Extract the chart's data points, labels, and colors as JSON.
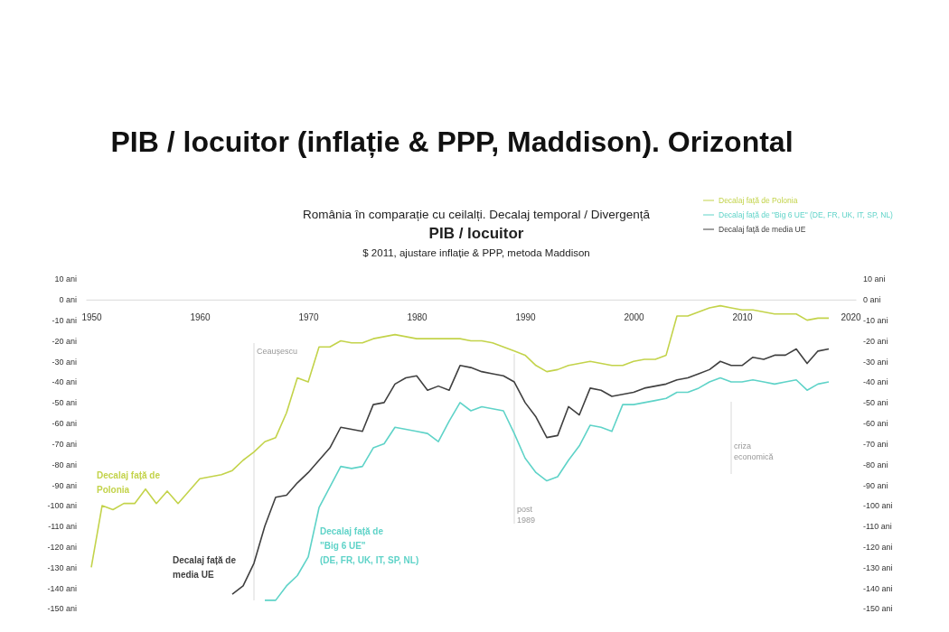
{
  "chart_data": {
    "type": "line",
    "title": "PIB / locuitor (inflație & PPP, Maddison). Orizontal",
    "subtitle": "România în comparație cu ceilalți. Decalaj temporal / Divergență",
    "annotations": [
      "PIB / locuitor",
      "$ 2011, ajustare inflație & PPP, metoda Maddison",
      "Decalaj față de\nPolonia",
      "Decalaj față de\n\"Big 6 UE\"\n(DE, FR, UK, IT, SP, NL)",
      "Decalaj față de\nmedia UE"
    ],
    "x": [
      1950,
      1951,
      1952,
      1953,
      1954,
      1955,
      1956,
      1957,
      1958,
      1959,
      1960,
      1961,
      1962,
      1963,
      1964,
      1965,
      1966,
      1967,
      1968,
      1969,
      1970,
      1971,
      1972,
      1973,
      1974,
      1975,
      1976,
      1977,
      1978,
      1979,
      1980,
      1981,
      1982,
      1983,
      1984,
      1985,
      1986,
      1987,
      1988,
      1989,
      1990,
      1991,
      1992,
      1993,
      1994,
      1995,
      1996,
      1997,
      1998,
      1999,
      2000,
      2001,
      2002,
      2003,
      2004,
      2005,
      2006,
      2007,
      2008,
      2009,
      2010,
      2011,
      2012,
      2013,
      2014,
      2015,
      2016,
      2017,
      2018
    ],
    "series": [
      {
        "name": "Decalaj față de Polonia",
        "color": "#c3d34a",
        "values": [
          -130,
          -100,
          -102,
          -99,
          -99,
          -92,
          -99,
          -93,
          -99,
          -93,
          -87,
          -86,
          -85,
          -83,
          -78,
          -74,
          -69,
          -67,
          -55,
          -38,
          -40,
          -23,
          -23,
          -20,
          -21,
          -21,
          -19,
          -18,
          -17,
          -18,
          -19,
          -19,
          -19,
          -19,
          -19,
          -20,
          -20,
          -21,
          -23,
          -25,
          -27,
          -32,
          -35,
          -34,
          -32,
          -31,
          -30,
          -31,
          -32,
          -32,
          -30,
          -29,
          -29,
          -27,
          -8,
          -8,
          -6,
          -4,
          -3,
          -4,
          -5,
          -5,
          -6,
          -7,
          -7,
          -7,
          -10,
          -9,
          -9
        ]
      },
      {
        "name": "Decalaj față de \"Big 6 UE\" (DE, FR, UK, IT, SP, NL)",
        "color": "#5fd3c8",
        "values": [
          null,
          null,
          null,
          null,
          null,
          null,
          null,
          null,
          null,
          null,
          null,
          null,
          null,
          null,
          null,
          null,
          -146,
          -146,
          -139,
          -134,
          -125,
          -101,
          -91,
          -81,
          -82,
          -81,
          -72,
          -70,
          -62,
          -63,
          -64,
          -65,
          -69,
          -59,
          -50,
          -54,
          -52,
          -53,
          -54,
          -65,
          -77,
          -84,
          -88,
          -86,
          -78,
          -71,
          -61,
          -62,
          -64,
          -51,
          -51,
          -50,
          -49,
          -48,
          -45,
          -45,
          -43,
          -40,
          -38,
          -40,
          -40,
          -39,
          -40,
          -41,
          -40,
          -39,
          -44,
          -41,
          -40
        ]
      },
      {
        "name": "Decalaj față de media UE",
        "color": "#404040",
        "values": [
          null,
          null,
          null,
          null,
          null,
          null,
          null,
          null,
          null,
          null,
          null,
          null,
          null,
          -143,
          -139,
          -128,
          -110,
          -96,
          -95,
          -89,
          -84,
          -78,
          -72,
          -62,
          -63,
          -64,
          -51,
          -50,
          -41,
          -38,
          -37,
          -44,
          -42,
          -44,
          -32,
          -33,
          -35,
          -36,
          -37,
          -40,
          -50,
          -57,
          -67,
          -66,
          -52,
          -56,
          -43,
          -44,
          -47,
          -46,
          -45,
          -43,
          -42,
          -41,
          -39,
          -38,
          -36,
          -34,
          -30,
          -32,
          -32,
          -28,
          -29,
          -27,
          -27,
          -24,
          -31,
          -25,
          -24
        ]
      }
    ],
    "xlim": [
      1949.5,
      2020.5
    ],
    "xticks": [
      1950,
      1960,
      1970,
      1980,
      1990,
      2000,
      2010,
      2020
    ],
    "ylim": [
      -150,
      10
    ],
    "yticks": [
      {
        "value": 10,
        "label": "10 ani"
      },
      {
        "value": 0,
        "label": "0 ani"
      },
      {
        "value": -10,
        "label": "-10 ani"
      },
      {
        "value": -20,
        "label": "-20 ani"
      },
      {
        "value": -30,
        "label": "-30 ani"
      },
      {
        "value": -40,
        "label": "-40 ani"
      },
      {
        "value": -50,
        "label": "-50 ani"
      },
      {
        "value": -60,
        "label": "-60 ani"
      },
      {
        "value": -70,
        "label": "-70 ani"
      },
      {
        "value": -80,
        "label": "-80 ani"
      },
      {
        "value": -90,
        "label": "-90 ani"
      },
      {
        "value": -100,
        "label": "-100 ani"
      },
      {
        "value": -110,
        "label": "-110 ani"
      },
      {
        "value": -120,
        "label": "-120 ani"
      },
      {
        "value": -130,
        "label": "-130 ani"
      },
      {
        "value": -140,
        "label": "-140 ani"
      },
      {
        "value": -150,
        "label": "-150 ani"
      }
    ],
    "y2lim": [
      -150,
      10
    ],
    "y2ticks": [
      {
        "value": 10,
        "label": "10 ani"
      },
      {
        "value": 0,
        "label": "0 ani"
      },
      {
        "value": -10,
        "label": "-10 ani"
      },
      {
        "value": -20,
        "label": "-20 ani"
      },
      {
        "value": -30,
        "label": "-30 ani"
      },
      {
        "value": -40,
        "label": "-40 ani"
      },
      {
        "value": -50,
        "label": "-50 ani"
      },
      {
        "value": -60,
        "label": "-60 ani"
      },
      {
        "value": -70,
        "label": "-70 ani"
      },
      {
        "value": -80,
        "label": "-80 ani"
      },
      {
        "value": -90,
        "label": "-90 ani"
      },
      {
        "value": -100,
        "label": "-100 ani"
      },
      {
        "value": -110,
        "label": "-110 ani"
      },
      {
        "value": -120,
        "label": "-120 ani"
      },
      {
        "value": -130,
        "label": "-130 ani"
      },
      {
        "value": -140,
        "label": "-140 ani"
      },
      {
        "value": -150,
        "label": "-150 ani"
      }
    ],
    "ref_lines": [
      {
        "axis": "x",
        "value": 1965,
        "label": "Ceaușescu",
        "color": "#d9d9d9"
      },
      {
        "axis": "x",
        "value": 1989,
        "label": "post\n1989",
        "color": "#d9d9d9"
      },
      {
        "axis": "x",
        "value": 2009,
        "label": "criza\neconomică",
        "color": "#d9d9d9"
      }
    ],
    "legend": "top right"
  }
}
